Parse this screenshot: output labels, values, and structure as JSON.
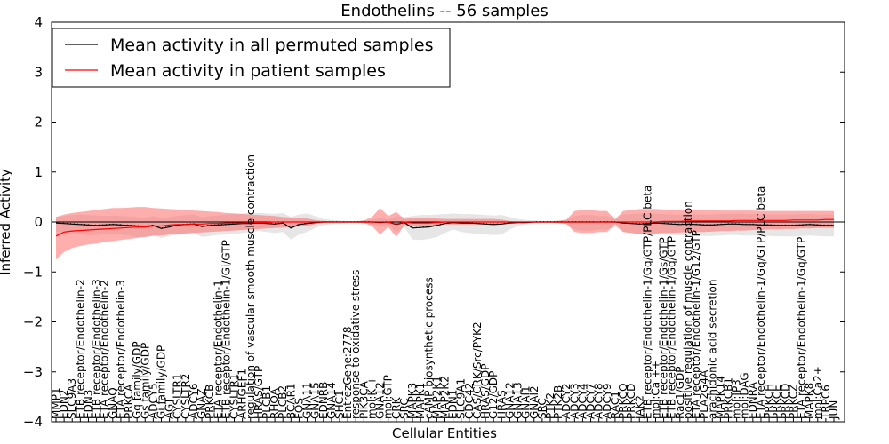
{
  "chart_data": {
    "type": "line",
    "title": "Endothelins -- 56 samples",
    "xlabel": "Cellular Entities",
    "ylabel": "Inferred Activity",
    "ylim": [
      -4,
      4
    ],
    "yticks": [
      4,
      3,
      2,
      1,
      0,
      -1,
      -2,
      -3,
      -4
    ],
    "grid": false,
    "legend_position": "top-left",
    "colors": {
      "permuted": "#000000",
      "patient": "#ff0000",
      "permuted_band": "#c8c8c8",
      "patient_band": "#ff6b6b"
    },
    "categories": [
      "MMP1",
      "EDN2",
      "SLC9A3",
      "ETB receptor/Endothelin-2",
      "EDN3",
      "ETB receptor/Endothelin-3",
      "ETA receptor/Endothelin-2",
      "GNAQ",
      "ETA receptor/Endothelin-3",
      "PRKCA",
      "Gq family/GDP",
      "Gs family/GDP",
      "ADCY5",
      "Gi family/GDP",
      "AGT",
      "CYSLTR1",
      "CYSLTR2",
      "ADCY6",
      "GNAZ",
      "PRKCB",
      "ETA receptor/Endothelin-1",
      "ETB receptor/Endothelin-1/Gi/GTP",
      "CYSLTR1",
      "ARHGEF1",
      "regulation of vascular smooth muscle contraction",
      "HRAS/GTP",
      "PLCB1",
      "RHOA",
      "PLCB2",
      "BCAR1",
      "FOS",
      "GNA11",
      "GNA15",
      "EDNRB",
      "GNA14",
      "SHC1",
      "EntrezGene:2778",
      "response to oxidative stress",
      "PIK3CA",
      "mol:K +",
      "GNA12",
      "mol:GTP",
      "CRK",
      "SRC",
      "MAPK3",
      "MAPK1",
      "cAMP biosynthetic process",
      "MAP2K1",
      "MAP2K2",
      "EDN1",
      "SLC9A1",
      "CDC42",
      "CAS/CRK/Src/PYK2",
      "HRAS/GDP",
      "G12/GDP",
      "HRAS",
      "GNA12",
      "GNA13",
      "GNAI1",
      "GNAI2",
      "SRC",
      "PTK2",
      "PTK2B",
      "ADCY2",
      "ADCY3",
      "ADCY4",
      "ADCY7",
      "ADCY8",
      "ADCY9",
      "RAC1",
      "PRKCQ",
      "PRKCD",
      "JAK2",
      "ETB receptor/Endothelin-1/Gq/GTP/PLC beta",
      "mol:Ca ++",
      "ETB receptor/Endothelin-1/Gs/GTP",
      "ETB receptor/Endothelin-1/Gq/GTP",
      "Rac1/GDP",
      "positive regulation of muscle contraction",
      "ETA receptor/Endothelin-1/G12/GTP",
      "PLA2G4A",
      "arachidonic acid secretion",
      "MAPK14",
      "PRKCB1",
      "mol:IP3",
      "mol:DAG",
      "EDNRA",
      "ETA receptor/Endothelin-1/Gq/GTP/PLC beta",
      "PRKCH",
      "PRKCE",
      "PRKCD",
      "PRKCZ",
      "ETA receptor/Endothelin-1/Gq/GTP",
      "MAPK8",
      "mol:Ca2+",
      "TRPC6",
      "JUN"
    ],
    "series": [
      {
        "name": "Mean activity in all permuted samples",
        "values": [
          -0.02,
          -0.03,
          -0.04,
          -0.05,
          -0.06,
          -0.07,
          -0.06,
          -0.05,
          -0.06,
          -0.07,
          -0.08,
          -0.09,
          -0.07,
          -0.13,
          -0.1,
          -0.06,
          -0.05,
          -0.04,
          -0.09,
          -0.07,
          -0.06,
          -0.05,
          -0.04,
          -0.03,
          -0.03,
          -0.02,
          -0.03,
          -0.04,
          -0.02,
          -0.12,
          -0.05,
          -0.03,
          -0.01,
          0,
          0,
          0,
          0,
          0,
          0,
          0,
          -0.01,
          0,
          -0.05,
          -0.01,
          -0.12,
          -0.11,
          -0.1,
          -0.07,
          -0.03,
          -0.01,
          -0.02,
          -0.02,
          -0.03,
          -0.04,
          -0.05,
          -0.04,
          -0.02,
          -0.01,
          -0.01,
          0,
          0,
          0,
          0,
          0,
          0,
          0,
          0,
          0,
          0,
          0,
          -0.02,
          -0.03,
          -0.04,
          -0.03,
          -0.02,
          -0.03,
          -0.04,
          -0.05,
          -0.04,
          -0.05,
          -0.06,
          -0.06,
          -0.05,
          -0.04,
          -0.04,
          -0.05,
          -0.05,
          -0.06,
          -0.06,
          -0.07,
          -0.07,
          -0.07,
          -0.06,
          -0.05,
          -0.06,
          -0.07,
          -0.07
        ],
        "lower": [
          -0.2,
          -0.22,
          -0.24,
          -0.25,
          -0.27,
          -0.26,
          -0.25,
          -0.24,
          -0.25,
          -0.27,
          -0.3,
          -0.3,
          -0.26,
          -0.32,
          -0.28,
          -0.26,
          -0.24,
          -0.22,
          -0.3,
          -0.28,
          -0.26,
          -0.25,
          -0.24,
          -0.22,
          -0.2,
          -0.18,
          -0.2,
          -0.22,
          -0.2,
          -0.35,
          -0.25,
          -0.2,
          -0.12,
          -0.06,
          -0.04,
          -0.03,
          -0.02,
          -0.02,
          -0.03,
          -0.04,
          -0.1,
          -0.05,
          -0.2,
          -0.1,
          -0.35,
          -0.36,
          -0.34,
          -0.3,
          -0.22,
          -0.15,
          -0.2,
          -0.22,
          -0.24,
          -0.25,
          -0.26,
          -0.25,
          -0.15,
          -0.08,
          -0.05,
          -0.03,
          -0.02,
          -0.02,
          -0.03,
          -0.05,
          -0.15,
          -0.18,
          -0.18,
          -0.15,
          -0.15,
          -0.1,
          -0.2,
          -0.22,
          -0.25,
          -0.24,
          -0.24,
          -0.25,
          -0.26,
          -0.27,
          -0.26,
          -0.27,
          -0.28,
          -0.28,
          -0.27,
          -0.26,
          -0.26,
          -0.27,
          -0.27,
          -0.28,
          -0.28,
          -0.29,
          -0.29,
          -0.29,
          -0.28,
          -0.27,
          -0.28,
          -0.29,
          -0.29
        ],
        "upper": [
          0.1,
          0.12,
          0.14,
          0.15,
          0.14,
          0.13,
          0.12,
          0.13,
          0.12,
          0.11,
          0.1,
          0.08,
          0.12,
          0.08,
          0.1,
          0.12,
          0.14,
          0.15,
          0.1,
          0.12,
          0.13,
          0.15,
          0.16,
          0.17,
          0.18,
          0.18,
          0.17,
          0.16,
          0.18,
          0.1,
          0.15,
          0.17,
          0.12,
          0.06,
          0.04,
          0.03,
          0.02,
          0.02,
          0.03,
          0.04,
          0.08,
          0.05,
          0.12,
          0.1,
          0.12,
          0.14,
          0.14,
          0.15,
          0.16,
          0.17,
          0.16,
          0.16,
          0.15,
          0.14,
          0.13,
          0.14,
          0.1,
          0.06,
          0.04,
          0.03,
          0.02,
          0.02,
          0.03,
          0.04,
          0.12,
          0.14,
          0.14,
          0.12,
          0.12,
          0.08,
          0.15,
          0.16,
          0.17,
          0.17,
          0.16,
          0.16,
          0.15,
          0.15,
          0.16,
          0.15,
          0.15,
          0.15,
          0.16,
          0.16,
          0.17,
          0.16,
          0.16,
          0.15,
          0.15,
          0.15,
          0.15,
          0.15,
          0.16,
          0.16,
          0.15,
          0.15,
          0.15
        ]
      },
      {
        "name": "Mean activity in patient samples",
        "values": [
          -0.28,
          -0.2,
          -0.18,
          -0.17,
          -0.16,
          -0.15,
          -0.14,
          -0.13,
          -0.12,
          -0.11,
          -0.1,
          -0.1,
          -0.08,
          -0.08,
          -0.06,
          -0.05,
          -0.05,
          -0.04,
          -0.04,
          -0.03,
          -0.03,
          -0.02,
          -0.02,
          -0.02,
          -0.01,
          -0.01,
          -0.01,
          0,
          0,
          0,
          0,
          0,
          0,
          0,
          0,
          0,
          0,
          0,
          0,
          0,
          0,
          0,
          -0.04,
          0,
          -0.02,
          -0.02,
          -0.02,
          -0.01,
          0,
          0,
          0,
          0,
          0,
          0,
          0,
          0,
          0,
          0,
          0,
          0,
          0,
          0,
          0,
          0,
          0,
          0,
          0,
          0,
          0,
          0,
          0,
          0,
          0,
          0,
          0,
          0.01,
          0.01,
          0.01,
          0.02,
          0.02,
          0.02,
          0.02,
          0.02,
          0.02,
          0.03,
          0.03,
          0.03,
          0.03,
          0.03,
          0.03,
          0.03,
          0.04,
          0.04,
          0.04,
          0.04,
          0.05,
          0.05
        ],
        "lower": [
          -0.75,
          -0.6,
          -0.52,
          -0.48,
          -0.45,
          -0.43,
          -0.4,
          -0.38,
          -0.36,
          -0.34,
          -0.32,
          -0.3,
          -0.28,
          -0.27,
          -0.25,
          -0.24,
          -0.23,
          -0.22,
          -0.21,
          -0.2,
          -0.19,
          -0.18,
          -0.17,
          -0.16,
          -0.15,
          -0.14,
          -0.13,
          -0.12,
          -0.11,
          -0.1,
          -0.09,
          -0.08,
          -0.04,
          -0.02,
          -0.01,
          -0.01,
          -0.01,
          -0.01,
          -0.02,
          -0.08,
          -0.25,
          -0.1,
          -0.3,
          -0.06,
          -0.08,
          -0.08,
          -0.08,
          -0.06,
          -0.05,
          -0.05,
          -0.05,
          -0.05,
          -0.05,
          -0.05,
          -0.06,
          -0.05,
          -0.02,
          -0.01,
          -0.01,
          -0.01,
          -0.01,
          -0.01,
          -0.02,
          -0.04,
          -0.2,
          -0.22,
          -0.22,
          -0.2,
          -0.2,
          -0.04,
          -0.2,
          -0.22,
          -0.24,
          -0.24,
          -0.23,
          -0.22,
          -0.22,
          -0.21,
          -0.2,
          -0.2,
          -0.2,
          -0.19,
          -0.18,
          -0.18,
          -0.17,
          -0.17,
          -0.16,
          -0.16,
          -0.15,
          -0.15,
          -0.14,
          -0.14,
          -0.13,
          -0.13,
          -0.12,
          -0.12,
          -0.12
        ],
        "upper": [
          0.1,
          0.15,
          0.18,
          0.2,
          0.22,
          0.24,
          0.26,
          0.28,
          0.28,
          0.29,
          0.3,
          0.3,
          0.28,
          0.27,
          0.26,
          0.25,
          0.24,
          0.23,
          0.22,
          0.21,
          0.2,
          0.18,
          0.17,
          0.16,
          0.15,
          0.14,
          0.13,
          0.12,
          0.1,
          0.09,
          0.08,
          0.07,
          0.04,
          0.02,
          0.01,
          0.01,
          0.01,
          0.01,
          0.03,
          0.1,
          0.28,
          0.12,
          0.2,
          0.06,
          0.08,
          0.08,
          0.08,
          0.07,
          0.06,
          0.06,
          0.06,
          0.06,
          0.06,
          0.06,
          0.06,
          0.05,
          0.02,
          0.01,
          0.01,
          0.01,
          0.01,
          0.01,
          0.02,
          0.05,
          0.22,
          0.24,
          0.24,
          0.22,
          0.22,
          0.05,
          0.22,
          0.24,
          0.26,
          0.26,
          0.26,
          0.25,
          0.25,
          0.25,
          0.24,
          0.24,
          0.24,
          0.24,
          0.23,
          0.23,
          0.23,
          0.23,
          0.23,
          0.22,
          0.22,
          0.22,
          0.22,
          0.22,
          0.22,
          0.22,
          0.22,
          0.22,
          0.22
        ]
      }
    ]
  }
}
